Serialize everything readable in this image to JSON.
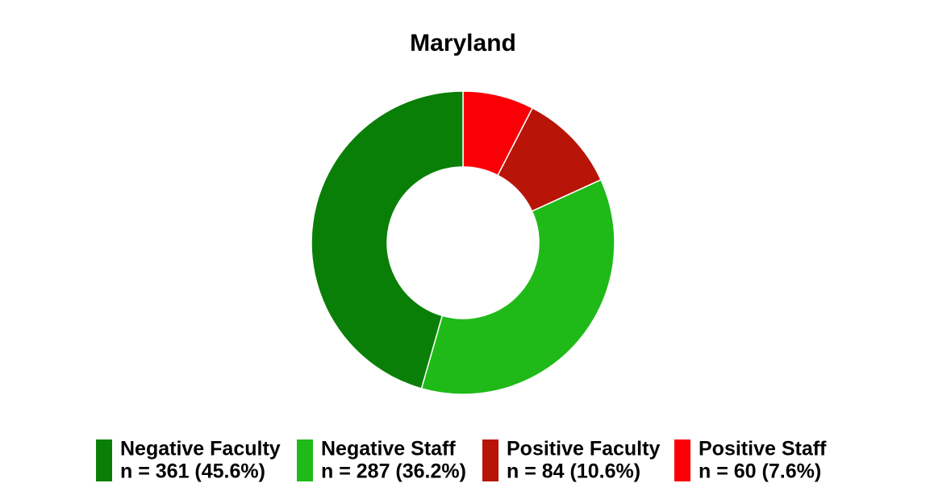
{
  "chart_data": {
    "type": "donut",
    "title": "Maryland",
    "series": [
      {
        "name": "Negative Faculty",
        "color": "#0a7f07",
        "values": [
          361
        ],
        "value_labels": [
          "n = 361 (45.6%)"
        ]
      },
      {
        "name": "Negative Staff",
        "color": "#1fba18",
        "values": [
          287
        ],
        "value_labels": [
          "n = 287 (36.2%)"
        ]
      },
      {
        "name": "Positive Faculty",
        "color": "#b81408",
        "values": [
          84
        ],
        "value_labels": [
          "n = 84 (10.6%)"
        ]
      },
      {
        "name": "Positive Staff",
        "color": "#fa0006",
        "values": [
          60
        ],
        "value_labels": [
          "n = 60 (7.6%)"
        ]
      }
    ]
  }
}
